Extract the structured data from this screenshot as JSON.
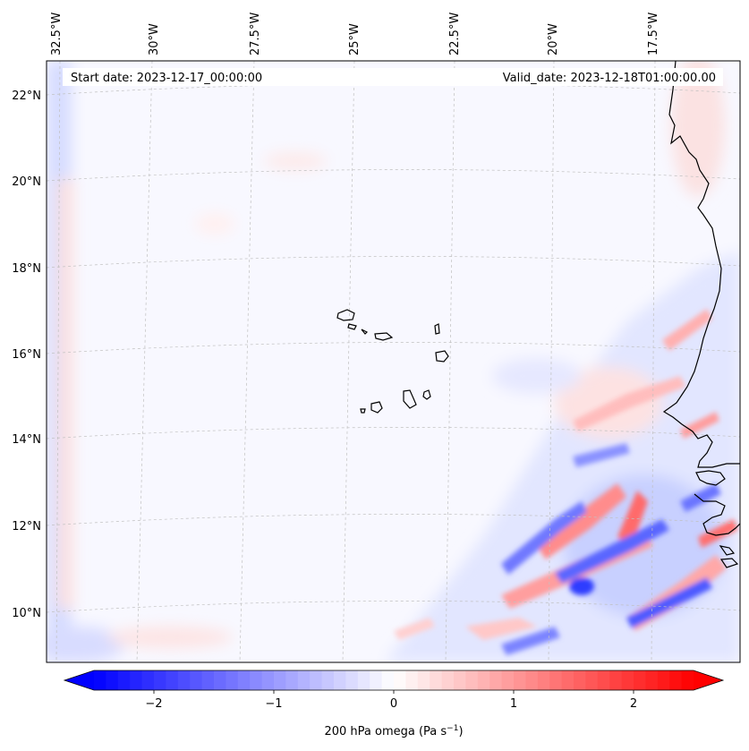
{
  "map": {
    "header": {
      "start_date": "Start date: 2023-12-17_00:00:00",
      "valid_date": "Valid_date: 2023-12-18T01:00:00.00"
    },
    "lon_labels": [
      "32.5°W",
      "30°W",
      "27.5°W",
      "25°W",
      "22.5°W",
      "20°W",
      "17.5°W"
    ],
    "lat_labels": [
      "22°N",
      "20°N",
      "18°N",
      "16°N",
      "14°N",
      "12°N",
      "10°N"
    ],
    "colorbar": {
      "ticks": [
        "−2",
        "−1",
        "0",
        "1",
        "2"
      ],
      "tick_values": [
        -2,
        -1,
        0,
        1,
        2
      ],
      "min": -2.5,
      "max": 2.5,
      "label_main": "200 hPa omega (Pa s",
      "label_sup": "−1",
      "label_close": ")",
      "colors": {
        "negative": "#0000ff",
        "zero": "#ffffff",
        "positive": "#ff0000"
      }
    }
  }
}
